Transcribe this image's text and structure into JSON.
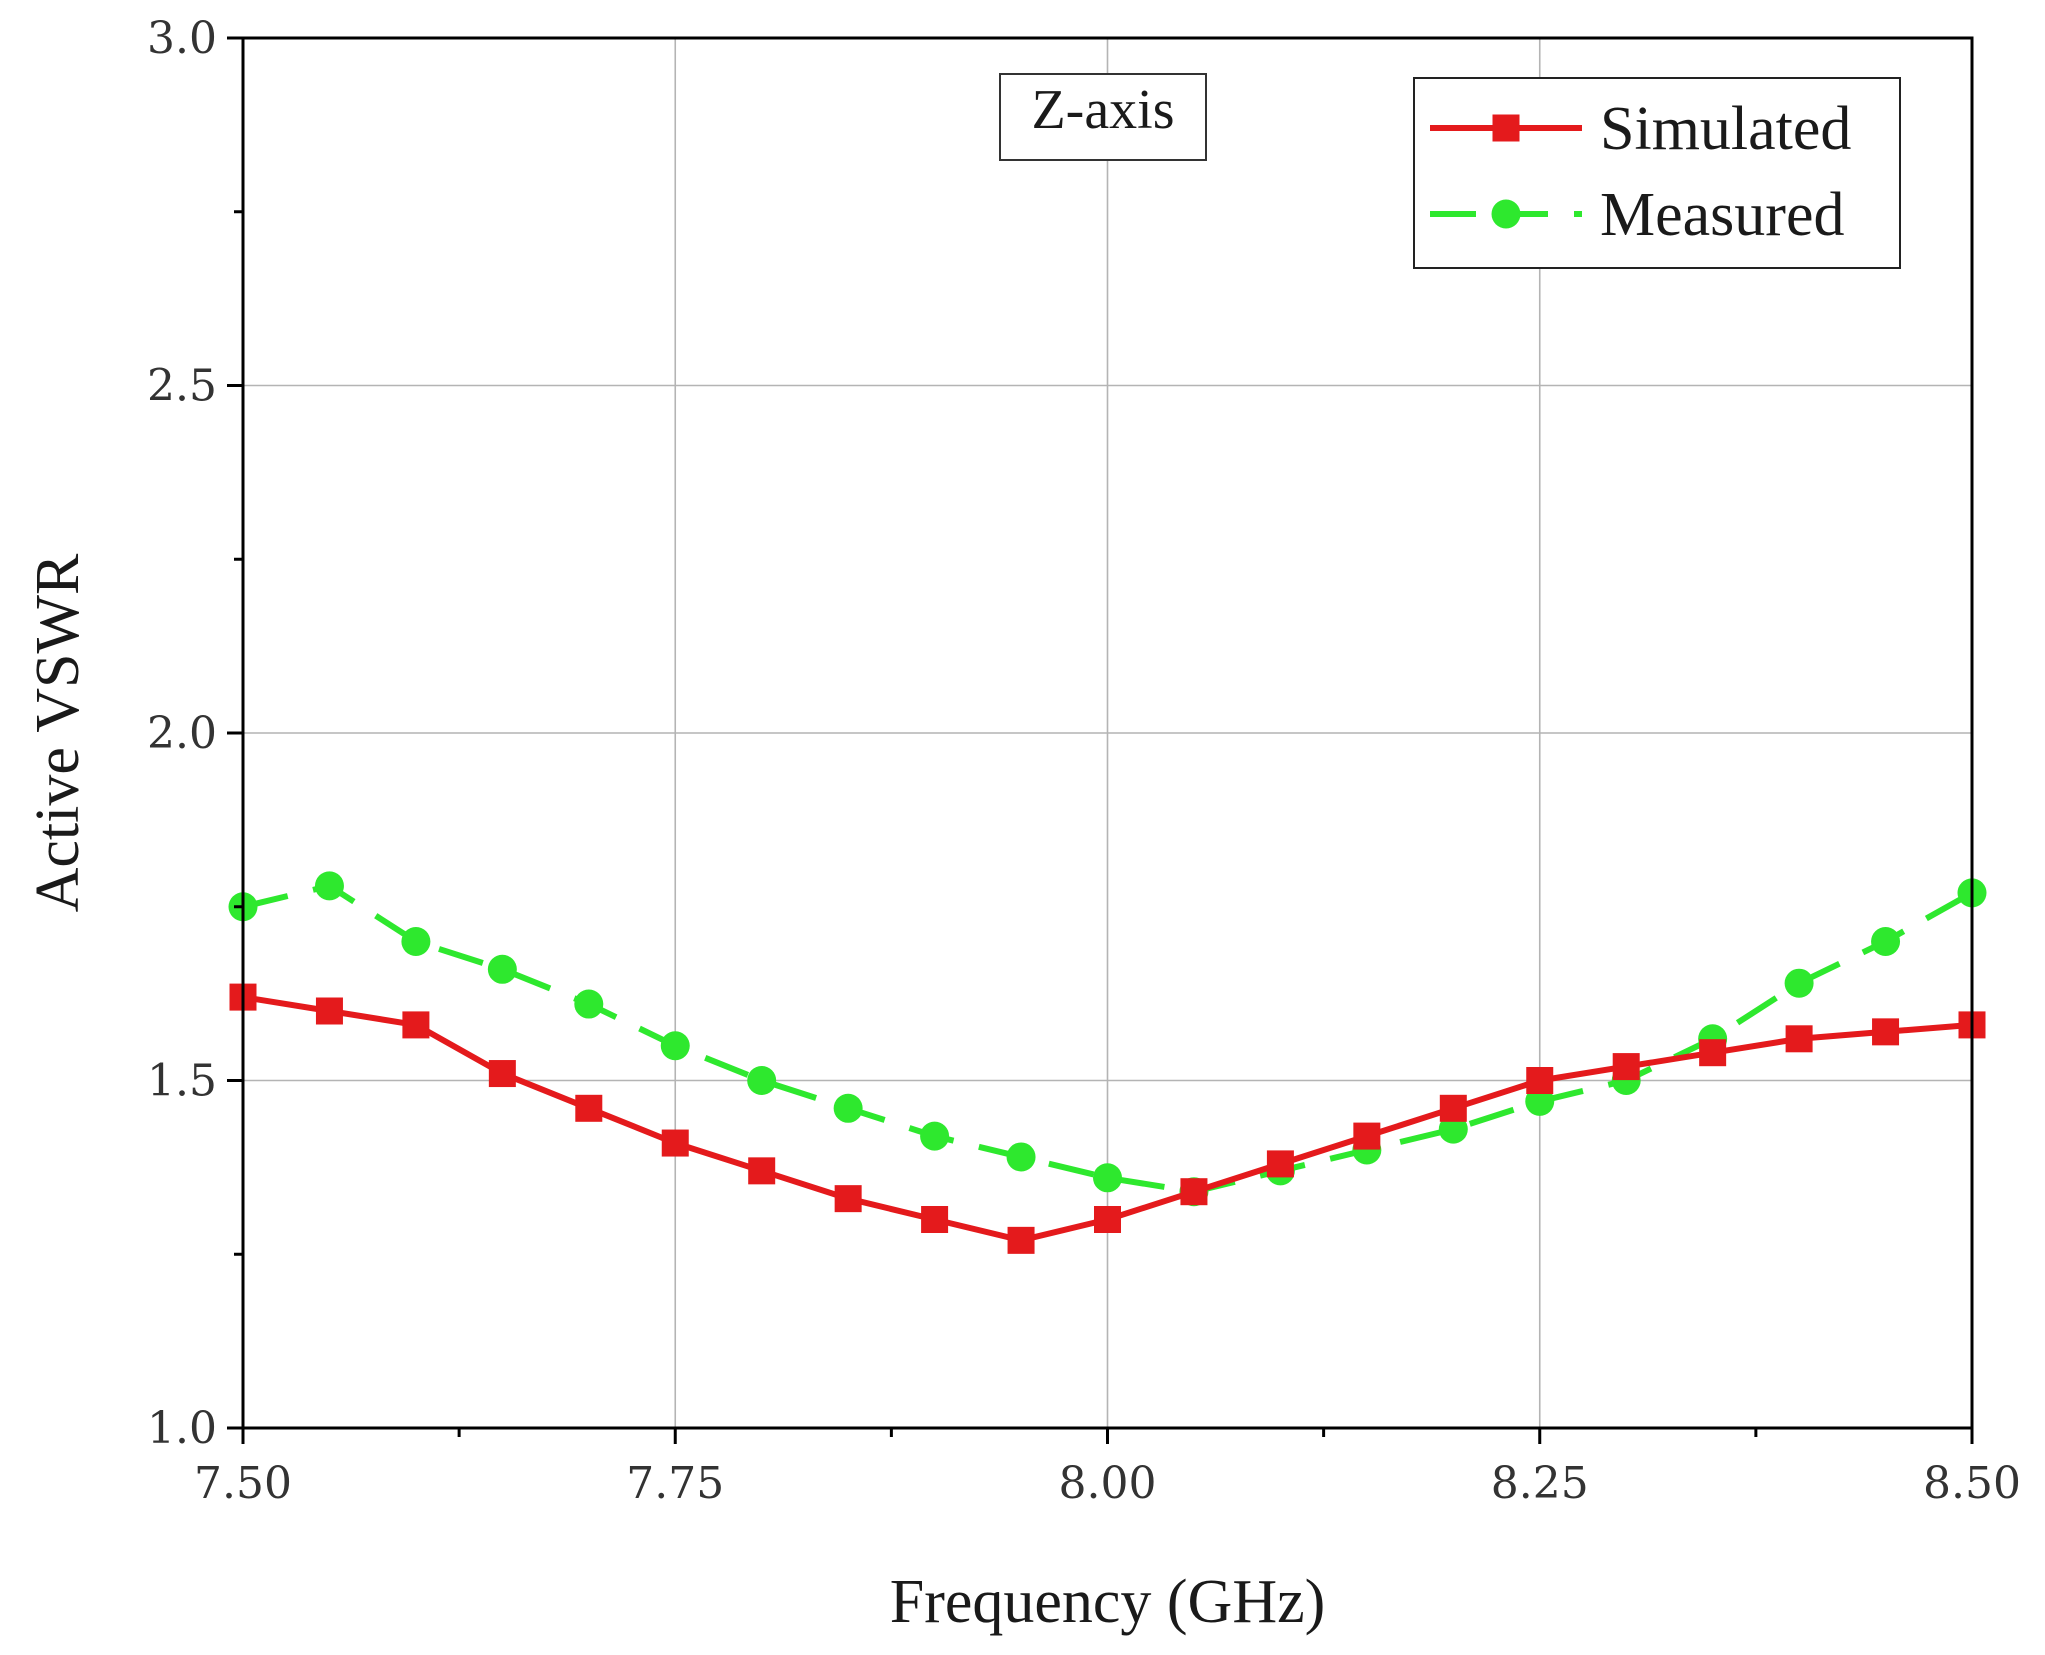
{
  "chart_data": {
    "type": "line",
    "title": "",
    "annotation": "Z-axis",
    "xlabel": "Frequency (GHz)",
    "ylabel": "Active VSWR",
    "xlim": [
      7.5,
      8.5
    ],
    "ylim": [
      1.0,
      3.0
    ],
    "xticks": [
      7.5,
      7.75,
      8.0,
      8.25,
      8.5
    ],
    "xtick_labels": [
      "7.50",
      "7.75",
      "8.00",
      "8.25",
      "8.50"
    ],
    "xticks_minor": [
      7.625,
      7.875,
      8.125,
      8.375
    ],
    "yticks": [
      1.0,
      1.5,
      2.0,
      2.5,
      3.0
    ],
    "ytick_labels": [
      "1.0",
      "1.5",
      "2.0",
      "2.5",
      "3.0"
    ],
    "yticks_minor": [
      1.25,
      1.75,
      2.25,
      2.75
    ],
    "grid": true,
    "legend_position": "top-right",
    "x": [
      7.5,
      7.55,
      7.6,
      7.65,
      7.7,
      7.75,
      7.8,
      7.85,
      7.9,
      7.95,
      8.0,
      8.05,
      8.1,
      8.15,
      8.2,
      8.25,
      8.3,
      8.35,
      8.4,
      8.45,
      8.5
    ],
    "series": [
      {
        "name": "Simulated",
        "color": "#e41a1c",
        "marker": "square",
        "line_style": "solid",
        "values": [
          1.62,
          1.6,
          1.58,
          1.51,
          1.46,
          1.41,
          1.37,
          1.33,
          1.3,
          1.27,
          1.3,
          1.34,
          1.38,
          1.42,
          1.46,
          1.5,
          1.52,
          1.54,
          1.56,
          1.57,
          1.58
        ]
      },
      {
        "name": "Measured",
        "color": "#2ee82e",
        "marker": "circle",
        "line_style": "dashed",
        "values": [
          1.75,
          1.78,
          1.7,
          1.66,
          1.61,
          1.55,
          1.5,
          1.46,
          1.42,
          1.39,
          1.36,
          1.34,
          1.37,
          1.4,
          1.43,
          1.47,
          1.5,
          1.56,
          1.64,
          1.7,
          1.77
        ]
      }
    ]
  }
}
